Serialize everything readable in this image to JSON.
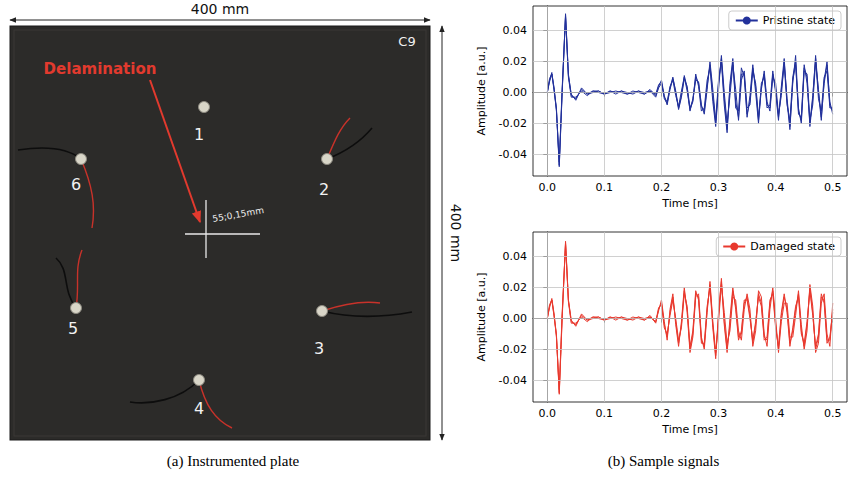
{
  "figure": {
    "a": {
      "caption": "(a) Instrumented plate",
      "width_label": "400 mm",
      "height_label": "400 mm",
      "plate_label": "C9",
      "annotation": "Delamination",
      "mark_label": "55;0,15mm",
      "sensors": [
        1,
        2,
        3,
        4,
        5,
        6
      ]
    },
    "b": {
      "caption": "(b) Sample signals"
    }
  },
  "chart_data": [
    {
      "type": "line",
      "xlabel": "Time [ms]",
      "ylabel": "Amplitude [a.u.]",
      "xlim": [
        -0.025,
        0.525
      ],
      "ylim": [
        -0.054,
        0.056
      ],
      "xticks": [
        {
          "value": 0,
          "label": "0.0"
        },
        0.1,
        0.2,
        0.3,
        0.4,
        0.5
      ],
      "yticks": [
        -0.04,
        -0.02,
        {
          "value": 0,
          "label": "0.00"
        },
        0.02,
        0.04
      ],
      "grid": true,
      "legend": "upper right",
      "x": [
        0,
        0.004,
        0.008,
        0.012,
        0.016,
        0.021,
        0.026,
        0.032,
        0.037,
        0.042,
        0.05,
        0.06,
        0.07,
        0.08,
        0.09,
        0.1,
        0.11,
        0.12,
        0.13,
        0.14,
        0.15,
        0.16,
        0.17,
        0.18,
        0.19,
        0.195,
        0.2,
        0.205,
        0.21,
        0.215,
        0.22,
        0.225,
        0.23,
        0.235,
        0.24,
        0.245,
        0.25,
        0.255,
        0.26,
        0.265,
        0.27,
        0.275,
        0.28,
        0.285,
        0.29,
        0.295,
        0.3,
        0.305,
        0.31,
        0.315,
        0.32,
        0.325,
        0.33,
        0.335,
        0.34,
        0.345,
        0.35,
        0.355,
        0.36,
        0.365,
        0.37,
        0.375,
        0.38,
        0.385,
        0.39,
        0.395,
        0.4,
        0.405,
        0.41,
        0.415,
        0.42,
        0.425,
        0.43,
        0.435,
        0.44,
        0.445,
        0.45,
        0.455,
        0.46,
        0.465,
        0.47,
        0.475,
        0.48,
        0.485,
        0.49,
        0.495,
        0.5
      ],
      "series": [
        {
          "name": "Pristine state",
          "color": "#22319b",
          "values": [
            0,
            0.008,
            0.013,
            0.002,
            -0.01,
            -0.047,
            0,
            0.05,
            0.012,
            -0.002,
            -0.004,
            0.002,
            -0.001,
            0.001,
            0,
            -0.001,
            0.001,
            0,
            0.001,
            -0.001,
            0,
            0.001,
            -0.001,
            0.002,
            -0.002,
            0.004,
            0.008,
            -0.002,
            -0.008,
            0.002,
            0.009,
            0.001,
            -0.01,
            -0.002,
            0.011,
            0.003,
            -0.012,
            -0.004,
            0.01,
            0.006,
            -0.009,
            -0.012,
            0.004,
            0.018,
            -0.002,
            -0.02,
            0.006,
            0.022,
            -0.004,
            -0.024,
            0.003,
            0.02,
            -0.006,
            -0.016,
            0.012,
            0.012,
            -0.014,
            -0.006,
            0.016,
            0.004,
            -0.018,
            0.002,
            0.014,
            -0.006,
            -0.012,
            0.01,
            0.006,
            -0.014,
            -0.002,
            0.02,
            -0.004,
            -0.022,
            0.006,
            0.024,
            -0.01,
            -0.02,
            0.014,
            0.012,
            -0.018,
            -0.008,
            0.02,
            0.002,
            -0.016,
            0.006,
            0.018,
            -0.006,
            -0.014
          ]
        },
        {
          "name": "Pristine state",
          "color": "#22319b",
          "values": [
            0,
            0.007,
            0.012,
            0.003,
            -0.012,
            -0.045,
            0.002,
            0.049,
            0.01,
            -0.003,
            -0.003,
            0.001,
            -0.002,
            0.001,
            0.001,
            -0.001,
            0,
            0.001,
            0,
            -0.001,
            0.001,
            0,
            -0.001,
            0.001,
            -0.003,
            0.003,
            0.006,
            -0.003,
            -0.006,
            0.004,
            0.008,
            -0.002,
            -0.009,
            0.001,
            0.01,
            0.001,
            -0.011,
            -0.006,
            0.012,
            0.004,
            -0.012,
            -0.01,
            0.008,
            0.016,
            -0.006,
            -0.022,
            0.002,
            0.024,
            0,
            -0.02,
            -0.002,
            0.018,
            0.002,
            -0.018,
            0.008,
            0.014,
            -0.01,
            -0.008,
            0.014,
            0.006,
            -0.016,
            0.004,
            0.012,
            -0.008,
            -0.01,
            0.012,
            0.002,
            -0.016,
            0.002,
            0.018,
            -0.008,
            -0.018,
            0.01,
            0.02,
            -0.014,
            -0.016,
            0.018,
            0.006,
            -0.02,
            -0.002,
            0.022,
            -0.004,
            -0.012,
            0.01,
            0.014,
            -0.01,
            -0.01
          ]
        },
        {
          "name": "Pristine state",
          "color": "#22319b",
          "values": [
            0,
            0.009,
            0.012,
            0.001,
            -0.011,
            -0.048,
            -0.001,
            0.051,
            0.011,
            -0.001,
            -0.005,
            0.003,
            -0.001,
            0,
            0.001,
            -0.001,
            0.001,
            -0.001,
            0.001,
            0,
            -0.001,
            0.001,
            0,
            0.001,
            -0.001,
            0.005,
            0.007,
            -0.004,
            -0.007,
            0.003,
            0.01,
            0,
            -0.011,
            -0.003,
            0.009,
            0.004,
            -0.01,
            -0.005,
            0.008,
            0.007,
            -0.008,
            -0.014,
            0.002,
            0.02,
            0.002,
            -0.018,
            0.008,
            0.02,
            -0.008,
            -0.026,
            0.006,
            0.022,
            -0.01,
            -0.012,
            0.016,
            0.01,
            -0.016,
            -0.002,
            0.018,
            0,
            -0.02,
            0.006,
            0.01,
            -0.01,
            -0.008,
            0.014,
            0,
            -0.018,
            0.004,
            0.022,
            -0.006,
            -0.024,
            0.008,
            0.018,
            -0.012,
            -0.018,
            0.016,
            0.01,
            -0.022,
            -0.004,
            0.024,
            0,
            -0.018,
            0.008,
            0.02,
            -0.008,
            -0.012
          ]
        }
      ]
    },
    {
      "type": "line",
      "xlabel": "Time [ms]",
      "ylabel": "Amplitude [a.u.]",
      "xlim": [
        -0.025,
        0.525
      ],
      "ylim": [
        -0.054,
        0.056
      ],
      "xticks": [
        {
          "value": 0,
          "label": "0.0"
        },
        0.1,
        0.2,
        0.3,
        0.4,
        0.5
      ],
      "yticks": [
        -0.04,
        -0.02,
        {
          "value": 0,
          "label": "0.00"
        },
        0.02,
        0.04
      ],
      "grid": true,
      "legend": "upper right",
      "x": [
        0,
        0.004,
        0.008,
        0.012,
        0.016,
        0.021,
        0.026,
        0.032,
        0.037,
        0.042,
        0.05,
        0.06,
        0.07,
        0.08,
        0.09,
        0.1,
        0.11,
        0.12,
        0.13,
        0.14,
        0.15,
        0.16,
        0.17,
        0.18,
        0.19,
        0.195,
        0.2,
        0.205,
        0.21,
        0.215,
        0.22,
        0.225,
        0.23,
        0.235,
        0.24,
        0.245,
        0.25,
        0.255,
        0.26,
        0.265,
        0.27,
        0.275,
        0.28,
        0.285,
        0.29,
        0.295,
        0.3,
        0.305,
        0.31,
        0.315,
        0.32,
        0.325,
        0.33,
        0.335,
        0.34,
        0.345,
        0.35,
        0.355,
        0.36,
        0.365,
        0.37,
        0.375,
        0.38,
        0.385,
        0.39,
        0.395,
        0.4,
        0.405,
        0.41,
        0.415,
        0.42,
        0.425,
        0.43,
        0.435,
        0.44,
        0.445,
        0.45,
        0.455,
        0.46,
        0.465,
        0.47,
        0.475,
        0.48,
        0.485,
        0.49,
        0.495,
        0.5
      ],
      "series": [
        {
          "name": "Damaged state",
          "color": "#e8392e",
          "values": [
            0,
            0.008,
            0.012,
            0.002,
            -0.01,
            -0.048,
            0.001,
            0.049,
            0.012,
            -0.002,
            -0.004,
            0.002,
            -0.001,
            0.001,
            0,
            -0.001,
            0.001,
            0,
            0.001,
            -0.001,
            0,
            0.001,
            -0.001,
            0.002,
            -0.003,
            0.006,
            0.01,
            -0.004,
            -0.012,
            0.004,
            0.014,
            -0.002,
            -0.016,
            -0.004,
            0.018,
            0.006,
            -0.02,
            -0.01,
            0.016,
            0.014,
            -0.014,
            -0.018,
            0.006,
            0.022,
            -0.004,
            -0.024,
            0.002,
            0.026,
            -0.002,
            -0.02,
            -0.004,
            0.018,
            0.008,
            -0.012,
            -0.01,
            0.01,
            0.014,
            0.002,
            -0.016,
            -0.004,
            0.016,
            0.01,
            -0.012,
            -0.014,
            0.01,
            0.018,
            -0.004,
            -0.02,
            0.002,
            0.014,
            0.006,
            -0.016,
            -0.008,
            0.006,
            0.016,
            -0.008,
            -0.018,
            -0.004,
            0.02,
            0.004,
            -0.02,
            -0.012,
            0.014,
            0.012,
            -0.014,
            -0.014,
            0.006
          ]
        },
        {
          "name": "Damaged state",
          "color": "#e8392e",
          "values": [
            0,
            0.007,
            0.013,
            0.003,
            -0.012,
            -0.046,
            0.003,
            0.048,
            0.011,
            -0.003,
            -0.003,
            0.001,
            -0.002,
            0.001,
            0.001,
            -0.001,
            0,
            0.001,
            0,
            -0.001,
            0.001,
            0,
            -0.001,
            0.001,
            -0.002,
            0.005,
            0.012,
            -0.002,
            -0.014,
            0.006,
            0.016,
            -0.004,
            -0.018,
            -0.002,
            0.02,
            0.004,
            -0.022,
            -0.012,
            0.014,
            0.016,
            -0.012,
            -0.02,
            0.004,
            0.024,
            -0.002,
            -0.022,
            -0.002,
            0.022,
            0.004,
            -0.016,
            -0.008,
            0.014,
            0.012,
            -0.008,
            -0.014,
            0.006,
            0.016,
            0.006,
            -0.018,
            -0.008,
            0.018,
            0.014,
            -0.01,
            -0.018,
            0.006,
            0.02,
            0,
            -0.022,
            -0.002,
            0.01,
            0.01,
            -0.012,
            -0.012,
            0.002,
            0.018,
            -0.004,
            -0.02,
            -0.008,
            0.022,
            0.008,
            -0.022,
            -0.016,
            0.01,
            0.016,
            -0.01,
            -0.018,
            0.01
          ]
        },
        {
          "name": "Damaged state",
          "color": "#e8392e",
          "values": [
            0,
            0.009,
            0.012,
            0.001,
            -0.011,
            -0.049,
            -0.001,
            0.05,
            0.012,
            -0.001,
            -0.005,
            0.003,
            -0.001,
            0,
            0.001,
            -0.001,
            0.001,
            -0.001,
            0.001,
            0,
            -0.001,
            0.001,
            0,
            0.001,
            -0.002,
            0.007,
            0.009,
            -0.006,
            -0.01,
            0.002,
            0.012,
            0,
            -0.014,
            -0.006,
            0.016,
            0.008,
            -0.018,
            -0.008,
            0.018,
            0.012,
            -0.016,
            -0.016,
            0.008,
            0.02,
            -0.006,
            -0.026,
            0.004,
            0.024,
            -0.004,
            -0.022,
            0,
            0.02,
            0.006,
            -0.014,
            -0.008,
            0.012,
            0.012,
            0,
            -0.014,
            -0.002,
            0.014,
            0.008,
            -0.014,
            -0.012,
            0.012,
            0.016,
            -0.006,
            -0.018,
            0.004,
            0.016,
            0.004,
            -0.018,
            -0.006,
            0.008,
            0.014,
            -0.01,
            -0.016,
            -0.002,
            0.018,
            0.002,
            -0.018,
            -0.01,
            0.016,
            0.01,
            -0.016,
            -0.012,
            0.004
          ]
        }
      ]
    }
  ]
}
